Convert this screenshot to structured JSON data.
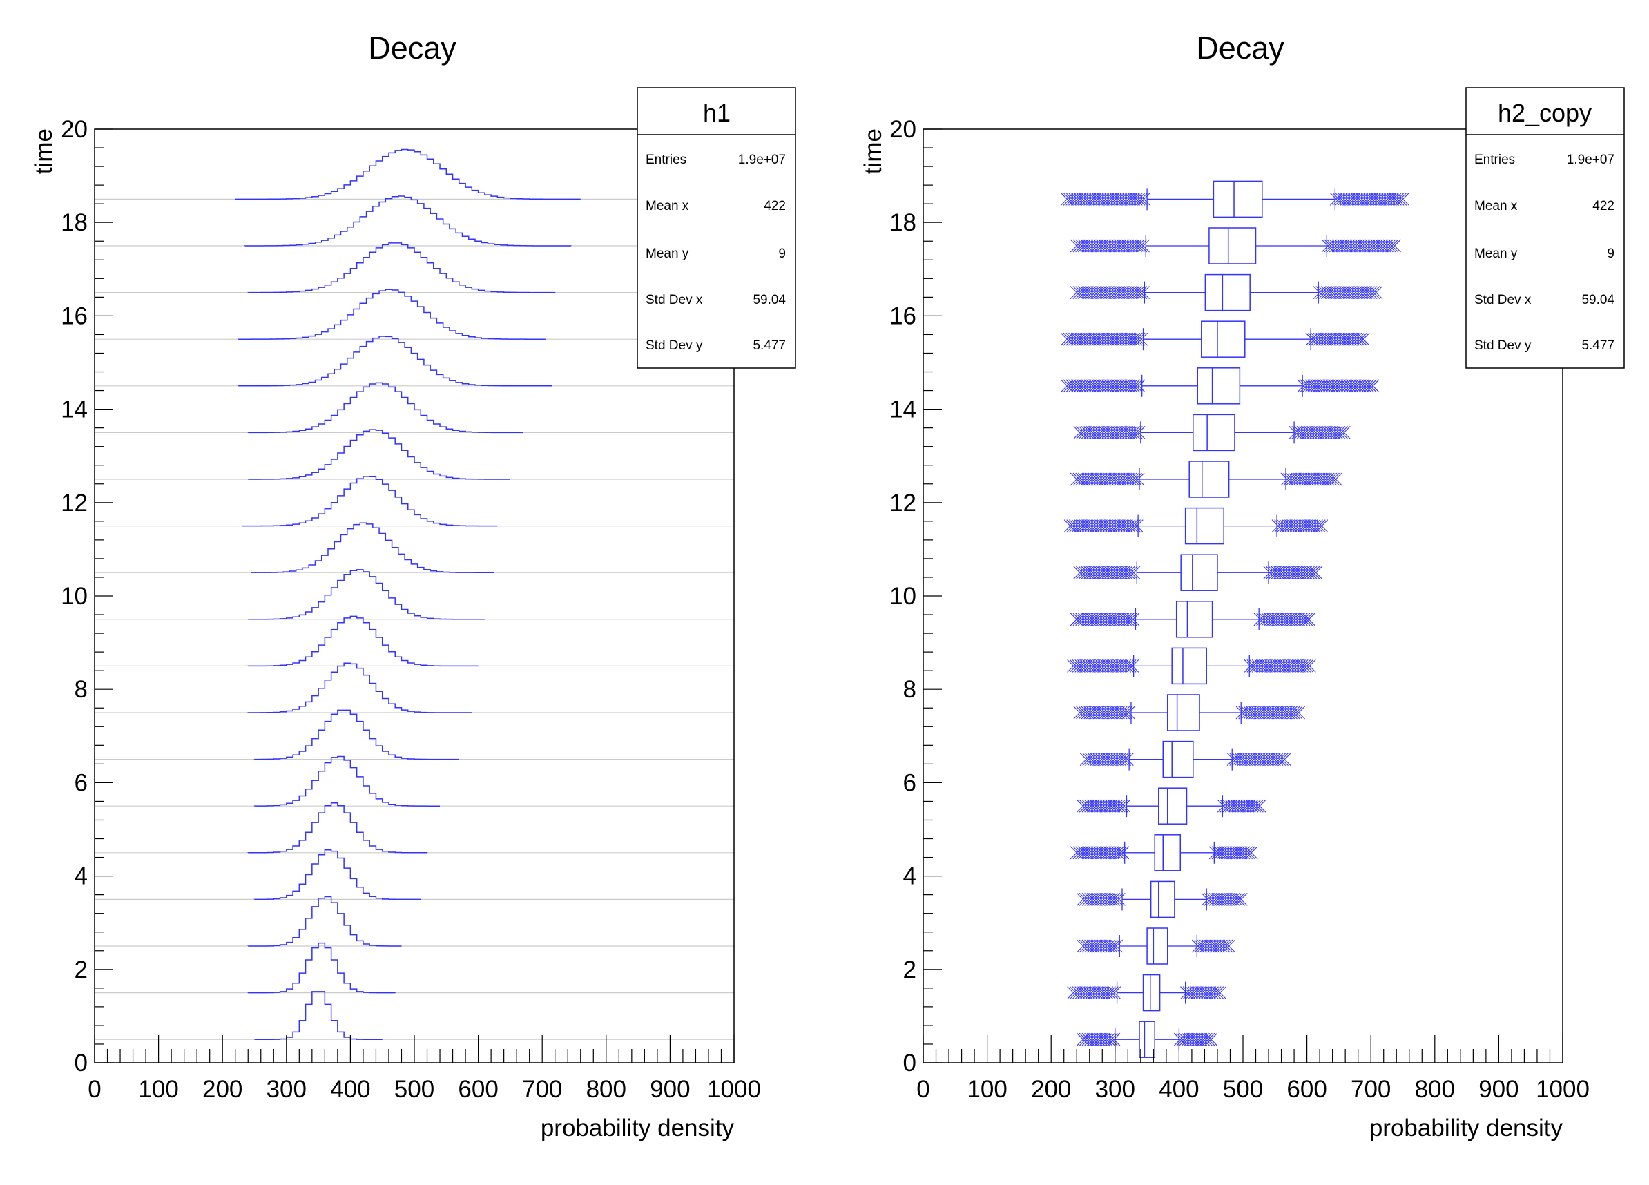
{
  "chart_data": [
    {
      "type": "area",
      "style": "ridgeline-histogram",
      "title": "Decay",
      "xlabel": "probability density",
      "ylabel": "time",
      "xlim": [
        0,
        1000
      ],
      "ylim": [
        0,
        20
      ],
      "x_ticks": [
        0,
        100,
        200,
        300,
        400,
        500,
        600,
        700,
        800,
        900,
        1000
      ],
      "y_ticks": [
        0,
        2,
        4,
        6,
        8,
        10,
        12,
        14,
        16,
        18,
        20
      ],
      "line_color": "#3333ff",
      "baseline_color": "#cccccc",
      "series": [
        {
          "y": 0.5,
          "mean": 350,
          "sigma": 18,
          "xmin": 250,
          "xmax": 450
        },
        {
          "y": 1.5,
          "mean": 355,
          "sigma": 22,
          "xmin": 240,
          "xmax": 470
        },
        {
          "y": 2.5,
          "mean": 362,
          "sigma": 25,
          "xmin": 240,
          "xmax": 475
        },
        {
          "y": 3.5,
          "mean": 368,
          "sigma": 28,
          "xmin": 250,
          "xmax": 505
        },
        {
          "y": 4.5,
          "mean": 375,
          "sigma": 30,
          "xmin": 240,
          "xmax": 520
        },
        {
          "y": 5.5,
          "mean": 382,
          "sigma": 32,
          "xmin": 250,
          "xmax": 535
        },
        {
          "y": 6.5,
          "mean": 390,
          "sigma": 34,
          "xmin": 250,
          "xmax": 565
        },
        {
          "y": 7.5,
          "mean": 398,
          "sigma": 36,
          "xmin": 240,
          "xmax": 585
        },
        {
          "y": 8.5,
          "mean": 405,
          "sigma": 38,
          "xmin": 240,
          "xmax": 595
        },
        {
          "y": 9.5,
          "mean": 413,
          "sigma": 40,
          "xmin": 240,
          "xmax": 605
        },
        {
          "y": 10.5,
          "mean": 421,
          "sigma": 42,
          "xmin": 245,
          "xmax": 620
        },
        {
          "y": 11.5,
          "mean": 429,
          "sigma": 44,
          "xmin": 230,
          "xmax": 625
        },
        {
          "y": 12.5,
          "mean": 437,
          "sigma": 46,
          "xmin": 240,
          "xmax": 650
        },
        {
          "y": 13.5,
          "mean": 445,
          "sigma": 48,
          "xmin": 240,
          "xmax": 665
        },
        {
          "y": 14.5,
          "mean": 454,
          "sigma": 50,
          "xmin": 225,
          "xmax": 710
        },
        {
          "y": 15.5,
          "mean": 462,
          "sigma": 52,
          "xmin": 225,
          "xmax": 700
        },
        {
          "y": 16.5,
          "mean": 470,
          "sigma": 54,
          "xmin": 240,
          "xmax": 720
        },
        {
          "y": 17.5,
          "mean": 478,
          "sigma": 56,
          "xmin": 235,
          "xmax": 745
        },
        {
          "y": 18.5,
          "mean": 487,
          "sigma": 58,
          "xmin": 220,
          "xmax": 755
        }
      ],
      "stats": {
        "name": "h1",
        "rows": [
          {
            "label": "Entries",
            "value": "1.9e+07"
          },
          {
            "label": "Mean x",
            "value": "422"
          },
          {
            "label": "Mean y",
            "value": "9"
          },
          {
            "label": "Std Dev x",
            "value": "59.04"
          },
          {
            "label": "Std Dev y",
            "value": "5.477"
          }
        ]
      }
    },
    {
      "type": "box",
      "orientation": "horizontal",
      "title": "Decay",
      "xlabel": "probability density",
      "ylabel": "time",
      "xlim": [
        0,
        1000
      ],
      "ylim": [
        0,
        20
      ],
      "x_ticks": [
        0,
        100,
        200,
        300,
        400,
        500,
        600,
        700,
        800,
        900,
        1000
      ],
      "y_ticks": [
        0,
        2,
        4,
        6,
        8,
        10,
        12,
        14,
        16,
        18,
        20
      ],
      "line_color": "#3333ff",
      "boxes": [
        {
          "y": 0.5,
          "q1": 338,
          "median": 346,
          "q3": 362,
          "whisker_low": 300,
          "whisker_high": 400,
          "out_low": [
            250,
            298
          ],
          "out_high": [
            402,
            450
          ]
        },
        {
          "y": 1.5,
          "q1": 344,
          "median": 355,
          "q3": 370,
          "whisker_low": 303,
          "whisker_high": 410,
          "out_low": [
            235,
            300
          ],
          "out_high": [
            412,
            465
          ]
        },
        {
          "y": 2.5,
          "q1": 350,
          "median": 360,
          "q3": 382,
          "whisker_low": 307,
          "whisker_high": 428,
          "out_low": [
            250,
            305
          ],
          "out_high": [
            430,
            480
          ]
        },
        {
          "y": 3.5,
          "q1": 356,
          "median": 368,
          "q3": 393,
          "whisker_low": 311,
          "whisker_high": 443,
          "out_low": [
            250,
            309
          ],
          "out_high": [
            445,
            500
          ]
        },
        {
          "y": 4.5,
          "q1": 362,
          "median": 375,
          "q3": 402,
          "whisker_low": 315,
          "whisker_high": 455,
          "out_low": [
            240,
            313
          ],
          "out_high": [
            457,
            515
          ]
        },
        {
          "y": 5.5,
          "q1": 368,
          "median": 382,
          "q3": 412,
          "whisker_low": 318,
          "whisker_high": 468,
          "out_low": [
            250,
            316
          ],
          "out_high": [
            470,
            528
          ]
        },
        {
          "y": 6.5,
          "q1": 375,
          "median": 389,
          "q3": 422,
          "whisker_low": 322,
          "whisker_high": 483,
          "out_low": [
            255,
            320
          ],
          "out_high": [
            485,
            565
          ]
        },
        {
          "y": 7.5,
          "q1": 382,
          "median": 397,
          "q3": 432,
          "whisker_low": 325,
          "whisker_high": 497,
          "out_low": [
            245,
            323
          ],
          "out_high": [
            499,
            590
          ]
        },
        {
          "y": 8.5,
          "q1": 389,
          "median": 406,
          "q3": 443,
          "whisker_low": 329,
          "whisker_high": 510,
          "out_low": [
            235,
            327
          ],
          "out_high": [
            512,
            605
          ]
        },
        {
          "y": 9.5,
          "q1": 396,
          "median": 413,
          "q3": 452,
          "whisker_low": 332,
          "whisker_high": 525,
          "out_low": [
            240,
            330
          ],
          "out_high": [
            527,
            605
          ]
        },
        {
          "y": 10.5,
          "q1": 403,
          "median": 421,
          "q3": 460,
          "whisker_low": 334,
          "whisker_high": 540,
          "out_low": [
            245,
            332
          ],
          "out_high": [
            542,
            615
          ]
        },
        {
          "y": 11.5,
          "q1": 410,
          "median": 428,
          "q3": 470,
          "whisker_low": 336,
          "whisker_high": 553,
          "out_low": [
            230,
            334
          ],
          "out_high": [
            555,
            625
          ]
        },
        {
          "y": 12.5,
          "q1": 416,
          "median": 436,
          "q3": 478,
          "whisker_low": 338,
          "whisker_high": 567,
          "out_low": [
            240,
            336
          ],
          "out_high": [
            569,
            645
          ]
        },
        {
          "y": 13.5,
          "q1": 422,
          "median": 444,
          "q3": 487,
          "whisker_low": 340,
          "whisker_high": 580,
          "out_low": [
            245,
            338
          ],
          "out_high": [
            582,
            660
          ]
        },
        {
          "y": 14.5,
          "q1": 429,
          "median": 452,
          "q3": 495,
          "whisker_low": 342,
          "whisker_high": 593,
          "out_low": [
            225,
            340
          ],
          "out_high": [
            595,
            705
          ]
        },
        {
          "y": 15.5,
          "q1": 435,
          "median": 460,
          "q3": 503,
          "whisker_low": 344,
          "whisker_high": 606,
          "out_low": [
            225,
            342
          ],
          "out_high": [
            608,
            690
          ]
        },
        {
          "y": 16.5,
          "q1": 441,
          "median": 468,
          "q3": 511,
          "whisker_low": 346,
          "whisker_high": 618,
          "out_low": [
            240,
            344
          ],
          "out_high": [
            620,
            710
          ]
        },
        {
          "y": 17.5,
          "q1": 447,
          "median": 477,
          "q3": 520,
          "whisker_low": 348,
          "whisker_high": 631,
          "out_low": [
            240,
            346
          ],
          "out_high": [
            633,
            740
          ]
        },
        {
          "y": 18.5,
          "q1": 454,
          "median": 486,
          "q3": 530,
          "whisker_low": 350,
          "whisker_high": 644,
          "out_low": [
            225,
            348
          ],
          "out_high": [
            646,
            750
          ]
        }
      ],
      "stats": {
        "name": "h2_copy",
        "rows": [
          {
            "label": "Entries",
            "value": "1.9e+07"
          },
          {
            "label": "Mean x",
            "value": "422"
          },
          {
            "label": "Mean y",
            "value": "9"
          },
          {
            "label": "Std Dev x",
            "value": "59.04"
          },
          {
            "label": "Std Dev y",
            "value": "5.477"
          }
        ]
      }
    }
  ]
}
